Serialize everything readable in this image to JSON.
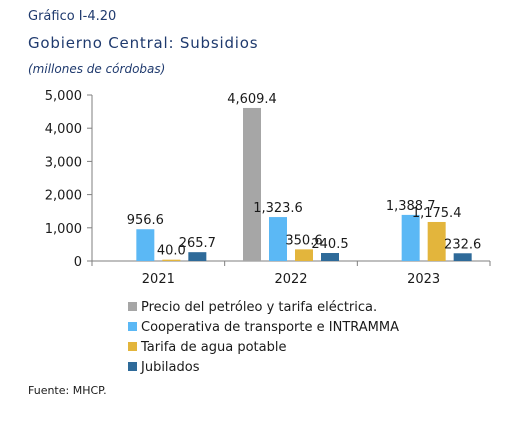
{
  "header": {
    "figure_label": "Gráfico I-4.20",
    "title": "Gobierno Central: Subsidios",
    "subtitle": "(millones de córdobas)"
  },
  "source": "Fuente: MHCP.",
  "chart_data": {
    "type": "bar",
    "categories": [
      "2021",
      "2022",
      "2023"
    ],
    "series": [
      {
        "name": "Precio del petróleo y tarifa eléctrica.",
        "color": "#a6a6a6",
        "values": [
          null,
          4609.4,
          null
        ],
        "labels": [
          "",
          "4,609.4",
          ""
        ]
      },
      {
        "name": "Cooperativa de transporte e INTRAMMA",
        "color": "#5bb8f5",
        "values": [
          956.6,
          1323.6,
          1388.7
        ],
        "labels": [
          "956.6",
          "1,323.6",
          "1,388.7"
        ]
      },
      {
        "name": "Tarifa de agua potable",
        "color": "#e3b53c",
        "values": [
          40.0,
          350.6,
          1175.4
        ],
        "labels": [
          "40.0",
          "350.6",
          "1,175.4"
        ]
      },
      {
        "name": "Jubilados",
        "color": "#2e6a99",
        "values": [
          265.7,
          240.5,
          232.6
        ],
        "labels": [
          "265.7",
          "240.5",
          "232.6"
        ]
      }
    ],
    "yticks": [
      "0",
      "1,000",
      "2,000",
      "3,000",
      "4,000",
      "5,000"
    ],
    "ylim": [
      0,
      5000
    ],
    "grid": false,
    "legend_position": "bottom-left"
  }
}
